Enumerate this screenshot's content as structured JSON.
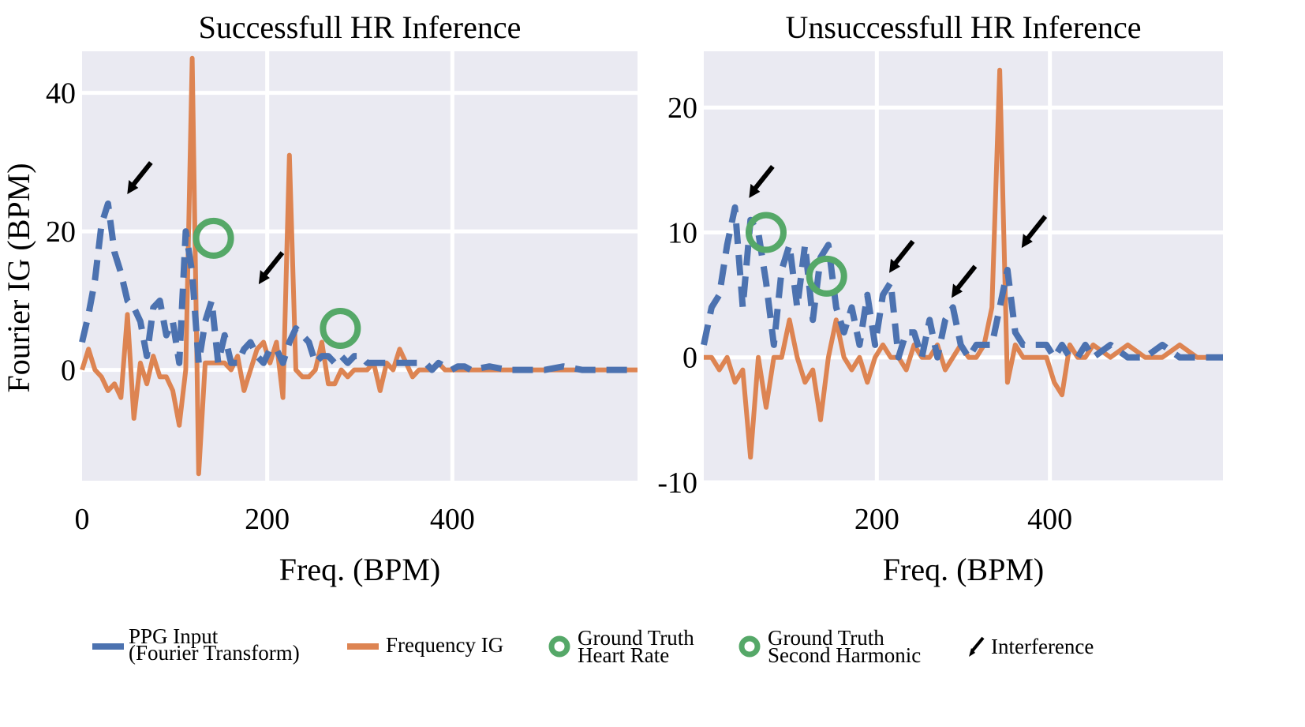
{
  "colors": {
    "ppg": "#4c72b0",
    "ig": "#dd8452",
    "ground_truth": "#55a868",
    "interference": "#000000",
    "plot_bg": "#eaeaf2",
    "grid": "#ffffff"
  },
  "shared_ylabel": "Fourier IG (BPM)",
  "legend": {
    "ppg_line1": "PPG Input",
    "ppg_line2": "(Fourier Transform)",
    "ig": "Frequency IG",
    "gt_hr_line1": "Ground Truth",
    "gt_hr_line2": "Heart Rate",
    "gt_sh_line1": "Ground Truth",
    "gt_sh_line2": "Second Harmonic",
    "interference": "Interference"
  },
  "chart_data": [
    {
      "type": "line",
      "title": "Successfull  HR Inference",
      "xlabel": "Freq. (BPM)",
      "ylabel": "Fourier IG (BPM)",
      "xlim": [
        0,
        600
      ],
      "ylim": [
        -16,
        46
      ],
      "xticks": [
        0,
        200,
        400
      ],
      "xtick_labels": [
        "0",
        "200",
        "400"
      ],
      "yticks": [
        0,
        20,
        40
      ],
      "ytick_labels": [
        "0",
        "20",
        "40"
      ],
      "grid": true,
      "series": [
        {
          "name": "PPG Input (Fourier Transform)",
          "style": "dashed",
          "x": [
            0,
            7,
            14,
            21,
            28,
            35,
            42,
            49,
            56,
            63,
            70,
            77,
            84,
            91,
            98,
            105,
            112,
            119,
            126,
            133,
            140,
            147,
            154,
            161,
            168,
            175,
            182,
            189,
            196,
            203,
            210,
            217,
            224,
            231,
            238,
            245,
            252,
            259,
            266,
            273,
            280,
            287,
            294,
            301,
            308,
            315,
            322,
            329,
            336,
            343,
            350,
            357,
            364,
            371,
            378,
            385,
            392,
            399,
            406,
            413,
            420,
            440,
            460,
            480,
            500,
            520,
            540,
            560,
            580,
            600
          ],
          "y": [
            4,
            8,
            13,
            21,
            24,
            17,
            14,
            10,
            9,
            7,
            2,
            9,
            10,
            5,
            7,
            1,
            20,
            14,
            1,
            7,
            10,
            1,
            5,
            1,
            1,
            3,
            4,
            2,
            1,
            3,
            3,
            1,
            4,
            6,
            5,
            4,
            1,
            2,
            2,
            1,
            2,
            1,
            2,
            2,
            1,
            1,
            1,
            1,
            1,
            1,
            1,
            1,
            1,
            1,
            0,
            1,
            0.5,
            0,
            0.5,
            0.5,
            0,
            0.5,
            0,
            0,
            0,
            0.5,
            0,
            0,
            0,
            0
          ]
        },
        {
          "name": "Frequency IG",
          "style": "solid",
          "x": [
            0,
            7,
            14,
            21,
            28,
            35,
            42,
            49,
            56,
            63,
            70,
            77,
            84,
            91,
            98,
            105,
            112,
            119,
            126,
            133,
            140,
            147,
            154,
            161,
            168,
            175,
            182,
            189,
            196,
            203,
            210,
            217,
            224,
            231,
            238,
            245,
            252,
            259,
            266,
            273,
            280,
            287,
            294,
            301,
            308,
            315,
            322,
            329,
            336,
            343,
            350,
            357,
            364,
            371,
            378,
            385,
            392,
            399,
            406,
            413,
            420,
            440,
            460,
            480,
            500,
            520,
            540,
            560,
            580,
            600
          ],
          "y": [
            0,
            3,
            0,
            -1,
            -3,
            -2,
            -4,
            8,
            -7,
            1,
            -2,
            2,
            -1,
            -1,
            -3,
            -8,
            0,
            45,
            -15,
            1,
            1,
            1,
            1,
            0,
            2,
            -3,
            0,
            3,
            4,
            1,
            4,
            -4,
            31,
            0,
            -1,
            -1,
            0,
            4,
            -2,
            -2,
            0,
            -1,
            0,
            0,
            0,
            1,
            -3,
            1,
            0,
            3,
            1,
            -1,
            0,
            0,
            0,
            1,
            0,
            0,
            0,
            0,
            0,
            0,
            0,
            0,
            0,
            0,
            0,
            0,
            0,
            0
          ]
        }
      ],
      "ground_truth_heart_rate": {
        "x": 142,
        "y": 19
      },
      "ground_truth_second_harmonic": {
        "x": 279,
        "y": 6
      },
      "interference": [
        {
          "x": 42,
          "y": 24
        },
        {
          "x": 184,
          "y": 11
        }
      ]
    },
    {
      "type": "line",
      "title": "Unsuccessfull  HR Inference",
      "xlabel": "Freq. (BPM)",
      "ylabel": "",
      "xlim": [
        0,
        600
      ],
      "ylim": [
        -10,
        24.5
      ],
      "xticks": [
        200,
        400
      ],
      "xtick_labels": [
        "200",
        "400"
      ],
      "yticks": [
        -10,
        0,
        10,
        20
      ],
      "ytick_labels": [
        "-10",
        "0",
        "10",
        "20"
      ],
      "grid": true,
      "series": [
        {
          "name": "PPG Input (Fourier Transform)",
          "style": "dashed",
          "x": [
            0,
            9,
            18,
            27,
            36,
            45,
            54,
            63,
            72,
            81,
            90,
            99,
            108,
            117,
            126,
            135,
            144,
            153,
            162,
            171,
            180,
            189,
            198,
            207,
            216,
            225,
            234,
            243,
            252,
            261,
            270,
            279,
            288,
            297,
            306,
            315,
            324,
            333,
            342,
            351,
            360,
            369,
            378,
            387,
            396,
            405,
            414,
            423,
            432,
            441,
            450,
            470,
            490,
            510,
            530,
            550,
            570,
            600
          ],
          "y": [
            1,
            4,
            5,
            9,
            12,
            4,
            11,
            10,
            6,
            1,
            7,
            9,
            4,
            9,
            3,
            8,
            9,
            4,
            2,
            4,
            1,
            5,
            1,
            5,
            6,
            0,
            2,
            2,
            0,
            3,
            0,
            3,
            4,
            1,
            0,
            1,
            1,
            1,
            4,
            7,
            2,
            1,
            1,
            1,
            1,
            0,
            1,
            0,
            0,
            1,
            0,
            1,
            0,
            0,
            1,
            0,
            0,
            0
          ]
        },
        {
          "name": "Frequency IG",
          "style": "solid",
          "x": [
            0,
            9,
            18,
            27,
            36,
            45,
            54,
            63,
            72,
            81,
            90,
            99,
            108,
            117,
            126,
            135,
            144,
            153,
            162,
            171,
            180,
            189,
            198,
            207,
            216,
            225,
            234,
            243,
            252,
            261,
            270,
            279,
            288,
            297,
            306,
            315,
            324,
            333,
            342,
            351,
            360,
            369,
            378,
            387,
            396,
            405,
            414,
            423,
            432,
            441,
            450,
            470,
            490,
            510,
            530,
            550,
            570,
            600
          ],
          "y": [
            0,
            0,
            -1,
            0,
            -2,
            -1,
            -8,
            0,
            -4,
            0,
            0,
            3,
            0,
            -2,
            -1,
            -5,
            0,
            3,
            0,
            -1,
            0,
            -2,
            0,
            1,
            0,
            0,
            -1,
            1,
            0,
            0,
            1,
            -1,
            0,
            1,
            0,
            0,
            1,
            4,
            23,
            -2,
            1,
            0,
            0,
            0,
            0,
            -2,
            -3,
            1,
            0,
            0,
            1,
            0,
            1,
            0,
            0,
            1,
            0,
            0
          ]
        }
      ],
      "ground_truth_heart_rate": {
        "x": 72,
        "y": 10
      },
      "ground_truth_second_harmonic": {
        "x": 142,
        "y": 6.5
      },
      "interference": [
        {
          "x": 45,
          "y": 12
        },
        {
          "x": 207,
          "y": 6
        },
        {
          "x": 279,
          "y": 4
        },
        {
          "x": 360,
          "y": 8
        }
      ]
    }
  ]
}
